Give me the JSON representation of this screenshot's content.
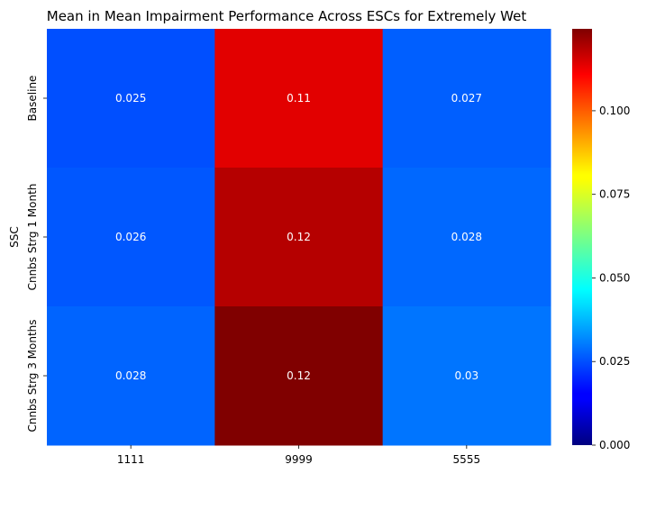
{
  "chart_data": {
    "type": "heatmap",
    "title": "Mean in Mean Impairment Performance Across ESCs for Extremely Wet",
    "xlabel": "",
    "ylabel": "SSC",
    "x_categories": [
      "1111",
      "9999",
      "5555"
    ],
    "y_categories": [
      "Baseline",
      "Cnnbs Strg 1 Month",
      "Cnnbs Strg 3 Months"
    ],
    "values": [
      [
        0.025,
        0.11,
        0.027
      ],
      [
        0.026,
        0.12,
        0.028
      ],
      [
        0.028,
        0.12,
        0.03
      ]
    ],
    "cell_labels": [
      [
        "0.025",
        "0.11",
        "0.027"
      ],
      [
        "0.026",
        "0.12",
        "0.028"
      ],
      [
        "0.028",
        "0.12",
        "0.03"
      ]
    ],
    "true_values": [
      [
        0.0252,
        0.1125,
        0.0272
      ],
      [
        0.0262,
        0.118,
        0.0282
      ],
      [
        0.0278,
        0.1245,
        0.0298
      ]
    ],
    "colormap": "jet",
    "colorbar": {
      "vmin": 0,
      "vmax": 0.1245,
      "ticks": [
        0.0,
        0.025,
        0.05,
        0.075,
        0.1
      ],
      "tick_labels": [
        "0.000",
        "0.025",
        "0.050",
        "0.075",
        "0.100"
      ]
    }
  }
}
